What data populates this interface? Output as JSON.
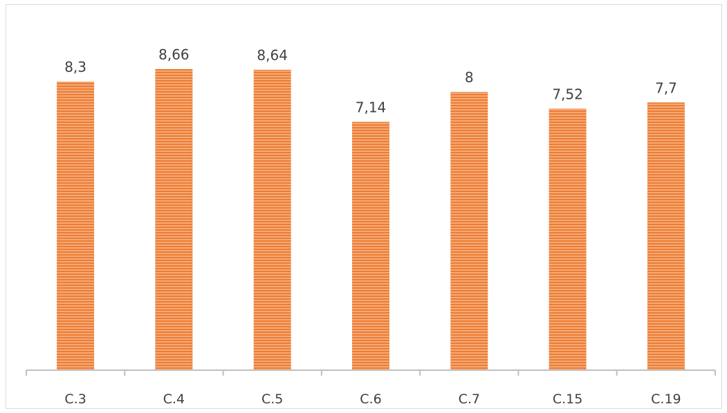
{
  "chart_data": {
    "type": "bar",
    "categories": [
      "C.3",
      "C.4",
      "C.5",
      "C.6",
      "C.7",
      "C.15",
      "C.19"
    ],
    "values": [
      8.3,
      8.66,
      8.64,
      7.14,
      8,
      7.52,
      7.7
    ],
    "data_labels": [
      "8,3",
      "8,66",
      "8,64",
      "7,14",
      "8",
      "7,52",
      "7,7"
    ],
    "title": "",
    "xlabel": "",
    "ylabel": "",
    "ylim": [
      0,
      10
    ],
    "grid": false,
    "legend": "none",
    "bar_color": "#f4a97a",
    "bar_stripe_color": "#ed7d31",
    "bar_fill_pattern": "horizontal-stripes",
    "axis_color": "#bfbfbf"
  }
}
